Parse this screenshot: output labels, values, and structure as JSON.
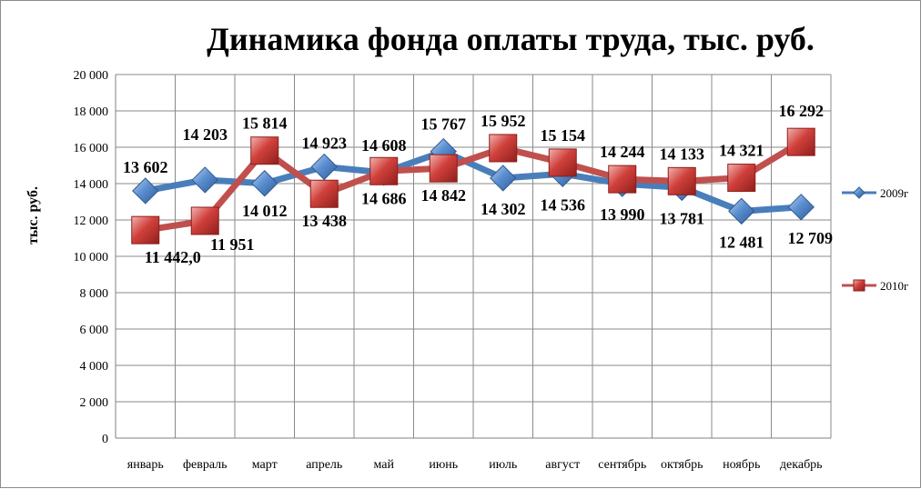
{
  "chart_data": {
    "type": "line",
    "title": "Динамика фонда оплаты труда, тыс. руб.",
    "xlabel": "",
    "ylabel": "тыс. руб.",
    "ylim": [
      0,
      20000
    ],
    "yticks": [
      0,
      2000,
      4000,
      6000,
      8000,
      10000,
      12000,
      14000,
      16000,
      18000,
      20000
    ],
    "ytick_labels": [
      "0",
      "2 000",
      "4 000",
      "6 000",
      "8 000",
      "10 000",
      "12 000",
      "14 000",
      "16 000",
      "18 000",
      "20 000"
    ],
    "grid": true,
    "legend_position": "right",
    "categories": [
      "январь",
      "февраль",
      "март",
      "апрель",
      "май",
      "июнь",
      "июль",
      "август",
      "сентябрь",
      "октябрь",
      "ноябрь",
      "декабрь"
    ],
    "series": [
      {
        "name": "2009г",
        "color": "#4a7ebb",
        "marker": "diamond",
        "values": [
          13602,
          14203,
          14012,
          14923,
          14608,
          15767,
          14302,
          14536,
          13990,
          13781,
          12481,
          12709
        ],
        "labels": [
          "13 602",
          "14 203",
          "14 012",
          "14 923",
          "14 608",
          "15 767",
          "14 302",
          "14 536",
          "13 990",
          "13 781",
          "12 481",
          "12 709"
        ]
      },
      {
        "name": "2010г",
        "color": "#c0504d",
        "marker": "square",
        "values": [
          11442,
          11951,
          15814,
          13438,
          14686,
          14842,
          15952,
          15154,
          14244,
          14133,
          14321,
          16292
        ],
        "labels": [
          "11 442,0",
          "11 951",
          "15 814",
          "13 438",
          "14 686",
          "14 842",
          "15 952",
          "15 154",
          "14 244",
          "14 133",
          "14 321",
          "16 292"
        ]
      }
    ]
  }
}
